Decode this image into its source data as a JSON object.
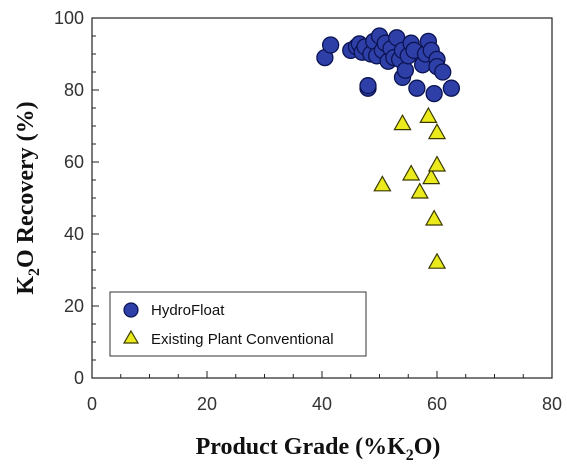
{
  "chart_data": {
    "type": "scatter",
    "xlabel": "Product Grade (%K2O)",
    "ylabel": "K2O Recovery (%)",
    "xlim": [
      0,
      80
    ],
    "ylim": [
      0,
      100
    ],
    "x_ticks": [
      "0",
      "20",
      "40",
      "60",
      "80"
    ],
    "y_ticks": [
      "0",
      "20",
      "40",
      "60",
      "80",
      "100"
    ],
    "grid": false,
    "legend_position": "bottom-left",
    "series": [
      {
        "name": "HydroFloat",
        "marker": "circle",
        "color": "#2f3fa8",
        "edge_color": "#0b1452",
        "points": [
          [
            40.5,
            89.0
          ],
          [
            41.5,
            92.5
          ],
          [
            45.0,
            91.0
          ],
          [
            46.0,
            92.0
          ],
          [
            46.5,
            92.8
          ],
          [
            47.0,
            90.5
          ],
          [
            47.5,
            92.0
          ],
          [
            48.0,
            80.5
          ],
          [
            48.0,
            81.2
          ],
          [
            48.5,
            90.0
          ],
          [
            49.0,
            93.5
          ],
          [
            49.5,
            89.5
          ],
          [
            50.0,
            95.0
          ],
          [
            50.5,
            91.0
          ],
          [
            51.0,
            93.0
          ],
          [
            51.5,
            88.0
          ],
          [
            52.0,
            91.5
          ],
          [
            52.5,
            89.0
          ],
          [
            53.0,
            94.5
          ],
          [
            53.5,
            88.5
          ],
          [
            54.0,
            83.5
          ],
          [
            54.0,
            91.0
          ],
          [
            54.5,
            85.5
          ],
          [
            55.0,
            89.5
          ],
          [
            55.5,
            93.0
          ],
          [
            56.0,
            91.0
          ],
          [
            56.5,
            80.5
          ],
          [
            57.5,
            87.0
          ],
          [
            58.0,
            90.0
          ],
          [
            58.5,
            93.5
          ],
          [
            59.0,
            91.0
          ],
          [
            59.5,
            79.0
          ],
          [
            60.0,
            88.5
          ],
          [
            60.0,
            86.5
          ],
          [
            61.0,
            85.0
          ],
          [
            62.5,
            80.5
          ]
        ]
      },
      {
        "name": "Existing Plant Conventional",
        "marker": "triangle",
        "color": "#eaea1c",
        "edge_color": "#3a3a00",
        "points": [
          [
            50.5,
            53.5
          ],
          [
            54.0,
            70.5
          ],
          [
            55.5,
            56.5
          ],
          [
            57.0,
            51.5
          ],
          [
            58.5,
            72.5
          ],
          [
            59.0,
            55.5
          ],
          [
            59.5,
            44.0
          ],
          [
            60.0,
            68.0
          ],
          [
            60.0,
            59.0
          ],
          [
            60.0,
            32.0
          ]
        ]
      }
    ]
  }
}
